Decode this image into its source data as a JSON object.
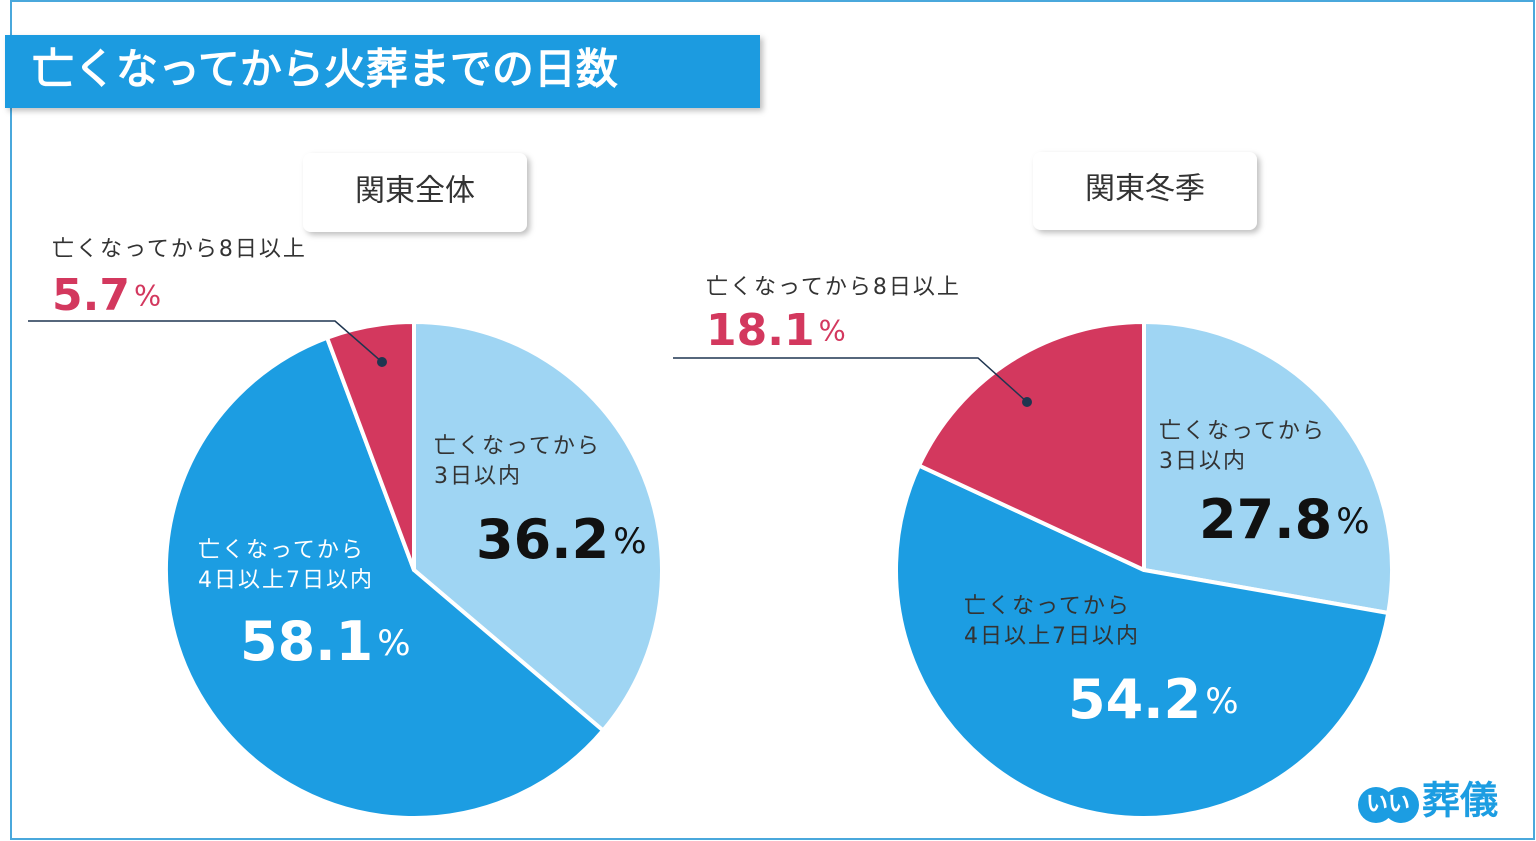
{
  "title": "亡くなってから火葬までの日数",
  "logo_badge": "いい",
  "logo_text": "葬儀",
  "chart_data": [
    {
      "type": "pie",
      "title": "関東全体",
      "categories": [
        "亡くなってから\n3日以内",
        "亡くなってから\n4日以上7日以内",
        "亡くなってから8日以上"
      ],
      "values": [
        36.2,
        58.1,
        5.7
      ],
      "value_labels": [
        "36.2%",
        "58.1%",
        "5.7%"
      ],
      "colors": [
        "#9fd5f3",
        "#1c9de2",
        "#d3385e"
      ]
    },
    {
      "type": "pie",
      "title": "関東冬季",
      "categories": [
        "亡くなってから\n3日以内",
        "亡くなってから\n4日以上7日以内",
        "亡くなってから8日以上"
      ],
      "values": [
        27.8,
        54.2,
        18.1
      ],
      "value_labels": [
        "27.8%",
        "54.2%",
        "18.1%"
      ],
      "colors": [
        "#9fd5f3",
        "#1c9de2",
        "#d3385e"
      ]
    }
  ]
}
